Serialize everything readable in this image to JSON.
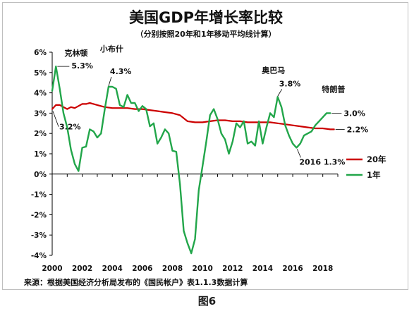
{
  "chart_data": {
    "type": "line",
    "title": "美国GDP年增长率比较",
    "subtitle": "（分别按照20年和1年移动平均线计算）",
    "xlabel": "",
    "ylabel": "",
    "xlim": [
      2000,
      2019
    ],
    "ylim": [
      -4,
      6
    ],
    "x_ticks": [
      "2000",
      "2002",
      "2004",
      "2006",
      "2008",
      "2010",
      "2012",
      "2014",
      "2016",
      "2018"
    ],
    "y_ticks": [
      "6%",
      "5%",
      "4%",
      "3%",
      "2%",
      "1%",
      "0%",
      "-1%",
      "-2%",
      "-3%",
      "-4%"
    ],
    "grid": false,
    "legend_position": "right",
    "series": [
      {
        "name": "20年",
        "color": "#cc0000",
        "x": [
          2000.0,
          2000.25,
          2000.5,
          2000.75,
          2001.0,
          2001.25,
          2001.5,
          2001.75,
          2002.0,
          2002.25,
          2002.5,
          2002.75,
          2003.0,
          2003.5,
          2004.0,
          2004.5,
          2005.0,
          2005.5,
          2006.0,
          2006.5,
          2007.0,
          2007.5,
          2008.0,
          2008.5,
          2009.0,
          2009.5,
          2010.0,
          2010.5,
          2011.0,
          2011.5,
          2012.0,
          2012.5,
          2013.0,
          2013.5,
          2014.0,
          2014.5,
          2015.0,
          2015.5,
          2016.0,
          2016.5,
          2017.0,
          2017.5,
          2018.0,
          2018.5,
          2018.75
        ],
        "values": [
          3.2,
          3.4,
          3.4,
          3.3,
          3.2,
          3.3,
          3.25,
          3.35,
          3.45,
          3.45,
          3.5,
          3.45,
          3.4,
          3.3,
          3.25,
          3.25,
          3.25,
          3.2,
          3.2,
          3.15,
          3.1,
          3.05,
          3.0,
          2.9,
          2.6,
          2.55,
          2.55,
          2.6,
          2.65,
          2.65,
          2.6,
          2.6,
          2.55,
          2.55,
          2.55,
          2.55,
          2.5,
          2.45,
          2.4,
          2.35,
          2.3,
          2.25,
          2.25,
          2.2,
          2.2
        ]
      },
      {
        "name": "1年",
        "color": "#22a64a",
        "x": [
          2000.0,
          2000.25,
          2000.5,
          2000.75,
          2001.0,
          2001.25,
          2001.5,
          2001.75,
          2002.0,
          2002.25,
          2002.5,
          2002.75,
          2003.0,
          2003.25,
          2003.5,
          2003.75,
          2004.0,
          2004.25,
          2004.5,
          2004.75,
          2005.0,
          2005.25,
          2005.5,
          2005.75,
          2006.0,
          2006.25,
          2006.5,
          2006.75,
          2007.0,
          2007.25,
          2007.5,
          2007.75,
          2008.0,
          2008.25,
          2008.5,
          2008.75,
          2009.0,
          2009.25,
          2009.5,
          2009.75,
          2010.0,
          2010.25,
          2010.5,
          2010.75,
          2011.0,
          2011.25,
          2011.5,
          2011.75,
          2012.0,
          2012.25,
          2012.5,
          2012.75,
          2013.0,
          2013.25,
          2013.5,
          2013.75,
          2014.0,
          2014.25,
          2014.5,
          2014.75,
          2015.0,
          2015.25,
          2015.5,
          2015.75,
          2016.0,
          2016.25,
          2016.5,
          2016.75,
          2017.0,
          2017.25,
          2017.5,
          2017.75,
          2018.0,
          2018.25,
          2018.5
        ],
        "values": [
          4.1,
          5.3,
          4.2,
          3.0,
          2.3,
          1.2,
          0.5,
          0.15,
          1.3,
          1.35,
          2.2,
          2.1,
          1.8,
          2.0,
          3.2,
          4.3,
          4.3,
          4.2,
          3.4,
          3.3,
          3.9,
          3.5,
          3.5,
          3.1,
          3.35,
          3.2,
          2.35,
          2.5,
          1.5,
          1.8,
          2.2,
          2.0,
          1.15,
          1.1,
          -0.5,
          -2.8,
          -3.4,
          -3.9,
          -3.2,
          -0.8,
          0.4,
          1.6,
          2.9,
          3.2,
          2.7,
          2.0,
          1.7,
          1.0,
          1.6,
          2.5,
          2.3,
          2.6,
          1.5,
          1.6,
          1.4,
          2.6,
          1.5,
          2.3,
          3.0,
          2.8,
          3.8,
          3.3,
          2.4,
          1.9,
          1.5,
          1.3,
          1.5,
          1.9,
          2.0,
          2.1,
          2.4,
          2.6,
          2.8,
          3.0,
          3.0
        ]
      }
    ],
    "annotations": [
      {
        "label": "克林顿",
        "value": "5.3%"
      },
      {
        "label": "小布什",
        "value": "4.3%"
      },
      {
        "label": "奥巴马",
        "value": "3.8%"
      },
      {
        "label": "特朗普",
        "value": "3.0%"
      },
      {
        "label": "",
        "value": "3.2%"
      },
      {
        "label": "",
        "value": "2.2%"
      },
      {
        "label": "2016",
        "value": "1.3%"
      }
    ],
    "source": "来源：根据美国经济分析局发布的《国民帐户》表1.1.3数据计算"
  },
  "figure_caption": "图6"
}
